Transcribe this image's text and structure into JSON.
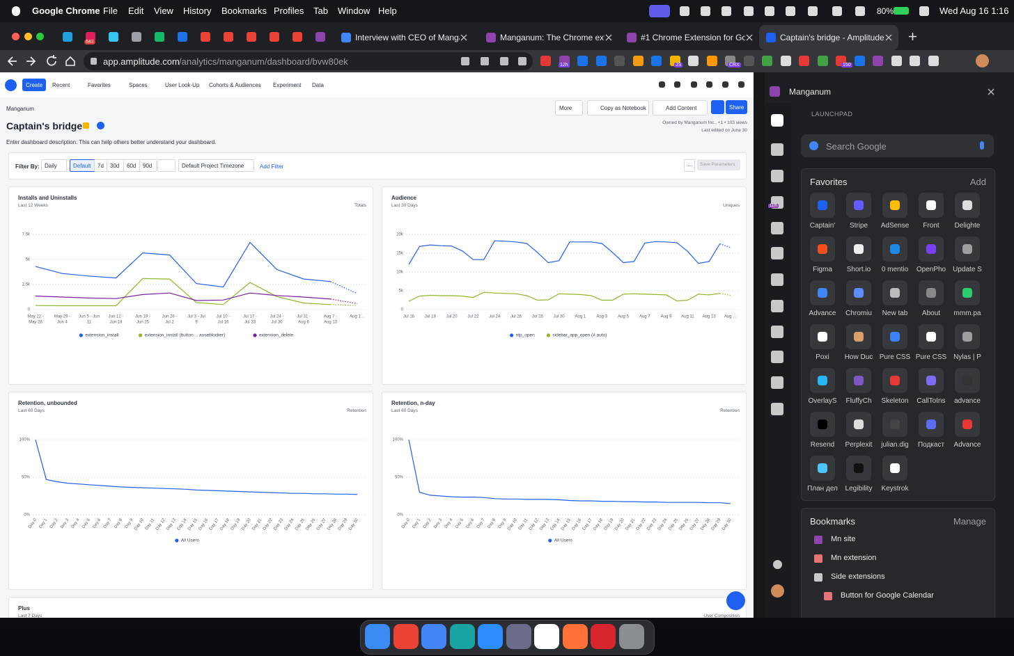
{
  "menubar": {
    "app": "Google Chrome",
    "menus": [
      "File",
      "Edit",
      "View",
      "History",
      "Bookmarks",
      "Profiles",
      "Tab",
      "Window",
      "Help"
    ],
    "battery": "80%",
    "clock": "Wed Aug 16  1:16"
  },
  "browser": {
    "pinned_badge": "542",
    "tabs": [
      "Interview with CEO of Mangan…",
      "Manganum: The Chrome exten…",
      "#1 Chrome Extension for Googl…",
      "Captain's bridge - Amplitude"
    ],
    "url_host": "app.amplitude.com",
    "url_path": "/analytics/manganum/dashboard/bvw80ek",
    "extension_badges": [
      "12h",
      "JS",
      "CRX",
      "150"
    ]
  },
  "amplitude": {
    "nav": {
      "create": "Create",
      "items": [
        "Recent",
        "Favorites",
        "Spaces",
        "User Look-Up",
        "Cohorts & Audiences",
        "Experiment",
        "Data"
      ]
    },
    "org": "Manganum",
    "title": "Captain's bridge",
    "description": "Enter dashboard description. This can help others better understand your dashboard.",
    "buttons": {
      "more": "More",
      "notebook": "Copy as Notebook",
      "add_content": "Add Content",
      "share": "Share"
    },
    "owner": "Owned by Manganum Inc., +1 • 103 views",
    "edited": "Last edited on June 30",
    "filter": {
      "label": "Filter By:",
      "interval": "Daily",
      "ranges": [
        "Default",
        "7d",
        "30d",
        "60d",
        "90d"
      ],
      "timezone": "Default Project Timezone",
      "add": "Add Filter",
      "more": "···",
      "save": "Save Parameters"
    },
    "charts": [
      {
        "type": "line",
        "title": "Installs and Uninstalls",
        "subtitle": "Last 12 Weeks",
        "badge": "Totals",
        "projected_last": true,
        "rotated_labels": false,
        "categories": [
          [
            "May 22 -",
            "May 28"
          ],
          [
            "May 29 -",
            "Jun 4"
          ],
          [
            "Jun 5 - Jun",
            "11"
          ],
          [
            "Jun 12 -",
            "Jun 18"
          ],
          [
            "Jun 19 -",
            "Jun 25"
          ],
          [
            "Jun 26 -",
            "Jul 2"
          ],
          [
            "Jul 3 - Jul",
            "9"
          ],
          [
            "Jul 10 -",
            "Jul 16"
          ],
          [
            "Jul 17 -",
            "Jul 23"
          ],
          [
            "Jul 24 -",
            "Jul 30"
          ],
          [
            "Jul 31 -",
            "Aug 6"
          ],
          [
            "Aug 7 -",
            "Aug 13"
          ],
          [
            "Aug 1…"
          ]
        ],
        "ylim": [
          0,
          7500
        ],
        "yticks": [
          0,
          {
            "value": 2500,
            "label": "2.5k"
          },
          {
            "value": 5000,
            "label": "5k"
          },
          {
            "value": 7500,
            "label": "7.5k"
          }
        ],
        "series": [
          {
            "name": "extension_install",
            "color": "#1e61f0",
            "values": [
              4300,
              3600,
              3350,
              3150,
              5650,
              5450,
              2600,
              2250,
              6700,
              4000,
              3050,
              2800,
              1600
            ]
          },
          {
            "name": "extension_install (button… auseblocker)",
            "color": "#8fb628",
            "values": [
              400,
              380,
              380,
              380,
              3100,
              3050,
              700,
              500,
              2700,
              1300,
              650,
              500,
              400
            ]
          },
          {
            "name": "extension_delete",
            "color": "#7b1fa2",
            "values": [
              1350,
              1250,
              1150,
              1100,
              1500,
              1650,
              900,
              950,
              1650,
              1400,
              1250,
              1050,
              600
            ]
          }
        ]
      },
      {
        "type": "line",
        "title": "Audience",
        "subtitle": "Last 30 Days",
        "badge": "Uniques",
        "projected_last": true,
        "rotated_labels": false,
        "categories": [
          "Jul 16",
          null,
          "Jul 18",
          null,
          "Jul 20",
          null,
          "Jul 22",
          null,
          "Jul 24",
          null,
          "Jul 26",
          null,
          "Jul 28",
          null,
          "Jul 30",
          null,
          "Aug 1",
          null,
          "Aug 3",
          null,
          "Aug 5",
          null,
          "Aug 7",
          null,
          "Aug 9",
          null,
          "Aug 11",
          null,
          "Aug 13",
          null,
          "Aug …"
        ],
        "ylim": [
          0,
          20000
        ],
        "yticks": [
          0,
          {
            "value": 5000,
            "label": "5k"
          },
          {
            "value": 10000,
            "label": "10k"
          },
          {
            "value": 15000,
            "label": "15k"
          },
          {
            "value": 20000,
            "label": "20k"
          }
        ],
        "series": [
          {
            "name": "ntp_open",
            "color": "#1e61f0",
            "values": [
              12000,
              16800,
              17200,
              17000,
              16900,
              15600,
              13300,
              13300,
              18300,
              18200,
              18000,
              17600,
              15200,
              12500,
              13000,
              18000,
              18000,
              18000,
              17600,
              15200,
              12500,
              12800,
              17700,
              18100,
              18000,
              17800,
              15500,
              12300,
              12800,
              17500,
              16500
            ]
          },
          {
            "name": "sidebar_app_open (≠ auto)",
            "color": "#8fb628",
            "values": [
              2200,
              3600,
              3800,
              3700,
              3700,
              3600,
              3200,
              4600,
              4400,
              4300,
              4200,
              3700,
              2500,
              2600,
              4200,
              4100,
              4000,
              3700,
              2500,
              2500,
              4100,
              4200,
              4100,
              4000,
              3900,
              2300,
              2500,
              4100,
              3900,
              4300,
              3800
            ]
          }
        ]
      },
      {
        "type": "line",
        "title": "Retention, unbounded",
        "subtitle": "Last 60 Days",
        "badge": "Retention",
        "projected_last": false,
        "rotated_labels": true,
        "categories": [
          "Day 0",
          "Day 1",
          "Day 2",
          "Day 3",
          "Day 4",
          "Day 5",
          "Day 6",
          "Day 7",
          "Day 8",
          "Day 9",
          "Day 10",
          "Day 11",
          "Day 12",
          "Day 13",
          "Day 14",
          "Day 15",
          "Day 16",
          "Day 17",
          "Day 18",
          "Day 19",
          "Day 20",
          "Day 21",
          "Day 22",
          "Day 23",
          "Day 24",
          "Day 25",
          "Day 26",
          "Day 27",
          "Day 28",
          "Day 29",
          "Day 30"
        ],
        "ylim": [
          0,
          100
        ],
        "yticks": [
          {
            "value": 0,
            "label": "0%"
          },
          {
            "value": 50,
            "label": "50%"
          },
          {
            "value": 100,
            "label": "100%"
          }
        ],
        "series": [
          {
            "name": "All Users",
            "color": "#1e61f0",
            "values": [
              100,
              47,
              44,
              42,
              41,
              40,
              39,
              38,
              37,
              36.5,
              36,
              35.5,
              35,
              34.5,
              34,
              33,
              32.5,
              32,
              31.5,
              31,
              30.5,
              30,
              29.5,
              29,
              28.5,
              28.5,
              28,
              28,
              27.5,
              27.5,
              27
            ]
          }
        ]
      },
      {
        "type": "line",
        "title": "Retention, n-day",
        "subtitle": "Last 60 Days",
        "badge": "Retention",
        "projected_last": false,
        "rotated_labels": true,
        "categories": [
          "Day 0",
          "Day 1",
          "Day 2",
          "Day 3",
          "Day 4",
          "Day 5",
          "Day 6",
          "Day 7",
          "Day 8",
          "Day 9",
          "Day 10",
          "Day 11",
          "Day 12",
          "Day 13",
          "Day 14",
          "Day 15",
          "Day 16",
          "Day 17",
          "Day 18",
          "Day 19",
          "Day 20",
          "Day 21",
          "Day 22",
          "Day 23",
          "Day 24",
          "Day 25",
          "Day 26",
          "Day 27",
          "Day 28",
          "Day 29",
          "Day 30"
        ],
        "ylim": [
          0,
          100
        ],
        "yticks": [
          {
            "value": 0,
            "label": "0%"
          },
          {
            "value": 50,
            "label": "50%"
          },
          {
            "value": 100,
            "label": "100%"
          }
        ],
        "series": [
          {
            "name": "All Users",
            "color": "#1e61f0",
            "values": [
              100,
              30,
              26,
              25,
              24,
              23.5,
              23.5,
              23,
              21.5,
              21,
              21,
              20.5,
              20.5,
              20.5,
              20,
              19,
              18.5,
              18.5,
              18,
              18,
              17.5,
              17.5,
              17,
              17,
              16.5,
              16.5,
              16.5,
              16.5,
              16,
              16,
              15
            ]
          }
        ]
      }
    ],
    "plus": {
      "title": "Plus",
      "subtitle": "Last 7 Days",
      "badge": "User Composition"
    }
  },
  "sidepanel": {
    "workspace": "Manganum",
    "section": "LAUNCHPAD",
    "rail_badge": "11th",
    "search": "Search Google",
    "favorites_title": "Favorites",
    "favorites_action": "Add",
    "favorites": [
      {
        "label": "Captain'",
        "color": "#1e61f0"
      },
      {
        "label": "Stripe",
        "color": "#635bff"
      },
      {
        "label": "AdSense",
        "color": "#fbbc04"
      },
      {
        "label": "Front",
        "color": "#ffffff"
      },
      {
        "label": "Delighte",
        "color": "#dddddd"
      },
      {
        "label": "Figma",
        "color": "#f24e1e"
      },
      {
        "label": "Short.io",
        "color": "#eeeeee"
      },
      {
        "label": "0 mentio",
        "color": "#1e88e5"
      },
      {
        "label": "OpenPho",
        "color": "#7b3ff2"
      },
      {
        "label": "Update S",
        "color": "#9e9e9e"
      },
      {
        "label": "Advance",
        "color": "#4285f4"
      },
      {
        "label": "Chromiu",
        "color": "#5c8df6"
      },
      {
        "label": "New tab",
        "color": "#bbbbbb"
      },
      {
        "label": "About",
        "color": "#888888"
      },
      {
        "label": "mmm.pa",
        "color": "#2ecc71"
      },
      {
        "label": "Poxi",
        "color": "#ffffff"
      },
      {
        "label": "How Duc",
        "color": "#d9a06b"
      },
      {
        "label": "Pure CSS",
        "color": "#3b82f6"
      },
      {
        "label": "Pure CSS",
        "color": "#ffffff"
      },
      {
        "label": "Nylas | P",
        "color": "#9e9e9e"
      },
      {
        "label": "OverlayS",
        "color": "#29b6f6"
      },
      {
        "label": "FluffyCh",
        "color": "#7e57c2"
      },
      {
        "label": "Skeleton",
        "color": "#e53935"
      },
      {
        "label": "CallToIns",
        "color": "#7c6cf0"
      },
      {
        "label": "advance",
        "color": "#333333"
      },
      {
        "label": "Resend",
        "color": "#000000"
      },
      {
        "label": "Perplexit",
        "color": "#dddddd"
      },
      {
        "label": "julian.dig",
        "color": "#444444"
      },
      {
        "label": "Подкаст",
        "color": "#5b6cf0"
      },
      {
        "label": "Advance",
        "color": "#e53935"
      },
      {
        "label": "План дел",
        "color": "#4fc3f7"
      },
      {
        "label": "Legibility",
        "color": "#111111"
      },
      {
        "label": "Keystrok",
        "color": "#ffffff"
      }
    ],
    "bookmarks_title": "Bookmarks",
    "bookmarks_action": "Manage",
    "bookmarks": [
      "Mn site",
      "Mn extension",
      "Side extensions",
      "Button for Google Calendar"
    ]
  }
}
